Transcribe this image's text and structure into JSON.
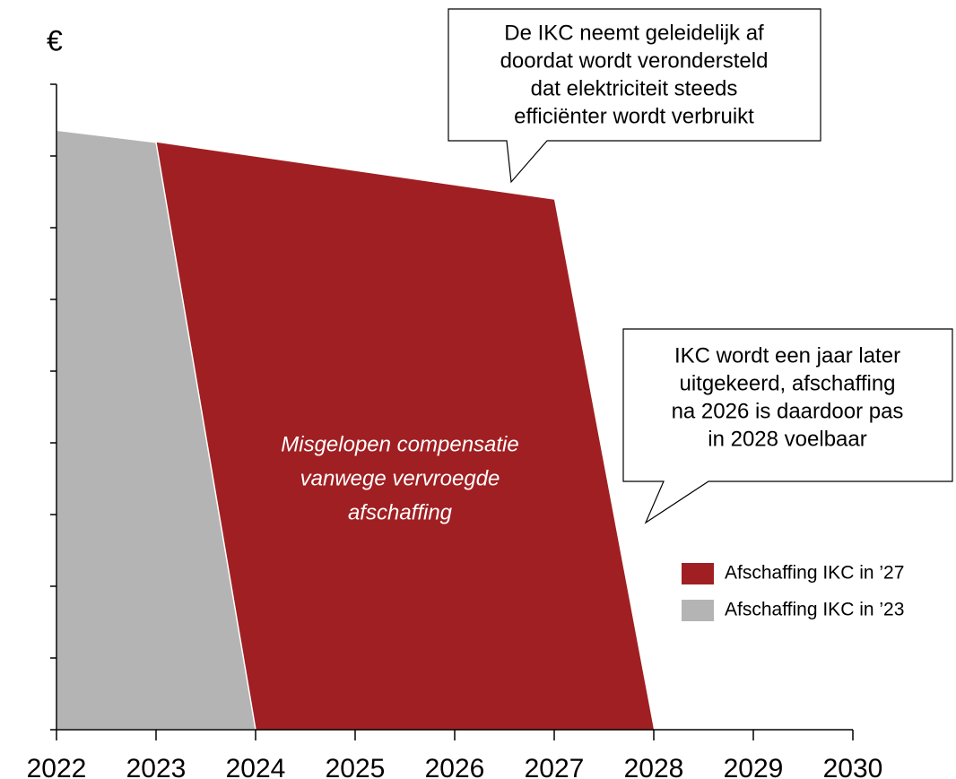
{
  "chart_data": {
    "type": "area",
    "y_label": "€",
    "xlim": [
      2022,
      2030
    ],
    "xticks": [
      2022,
      2023,
      2024,
      2025,
      2026,
      2027,
      2028,
      2029,
      2030
    ],
    "ylim": [
      0,
      9
    ],
    "yticks": [
      0,
      1,
      2,
      3,
      4,
      5,
      6,
      7,
      8,
      9
    ],
    "series": [
      {
        "name": "Afschaffing IKC in ’27",
        "color": "#a01f22",
        "x": [
          2023,
          2027,
          2028
        ],
        "values": [
          8.19,
          7.39,
          0
        ]
      },
      {
        "name": "Afschaffing IKC in ’23",
        "color": "#b4b4b4",
        "x": [
          2022,
          2023,
          2024
        ],
        "values": [
          8.36,
          8.19,
          0
        ]
      }
    ],
    "annotations": [
      {
        "lines": [
          "De IKC neemt geleidelijk af",
          "doordat wordt verondersteld",
          "dat elektriciteit steeds",
          "efficiënter wordt verbruikt"
        ]
      },
      {
        "lines": [
          "IKC wordt een jaar later",
          "uitgekeerd, afschaffing",
          "na 2026 is daardoor pas",
          "in 2028 voelbaar"
        ]
      },
      {
        "lines": [
          "Misgelopen compensatie",
          "vanwege vervroegde",
          "afschaffing"
        ]
      }
    ],
    "legend": "right"
  }
}
